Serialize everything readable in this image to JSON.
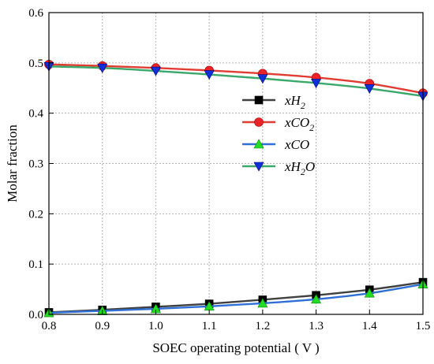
{
  "chart_data": {
    "type": "line",
    "title": "",
    "xlabel": "SOEC operating potential ( V )",
    "ylabel": "Molar fraction",
    "xlim": [
      0.8,
      1.5
    ],
    "ylim": [
      0.0,
      0.6
    ],
    "x": [
      0.8,
      0.9,
      1.0,
      1.1,
      1.2,
      1.3,
      1.4,
      1.5
    ],
    "x_ticks": [
      "0.8",
      "0.9",
      "1.0",
      "1.1",
      "1.2",
      "1.3",
      "1.4",
      "1.5"
    ],
    "y_ticks": [
      "0.0",
      "0.1",
      "0.2",
      "0.3",
      "0.4",
      "0.5",
      "0.6"
    ],
    "grid": true,
    "legend_position": "center-right",
    "series": [
      {
        "name": "xH2",
        "legend": {
          "base": "xH",
          "sub": "2",
          "tail": ""
        },
        "color": "#404040",
        "marker": "square",
        "marker_color": "#000000",
        "values": [
          0.004,
          0.009,
          0.015,
          0.021,
          0.029,
          0.038,
          0.049,
          0.064
        ]
      },
      {
        "name": "xCO2",
        "legend": {
          "base": "xCO",
          "sub": "2",
          "tail": ""
        },
        "color": "#e03c31",
        "marker": "circle",
        "marker_color": "#e8232a",
        "values": [
          0.497,
          0.494,
          0.49,
          0.485,
          0.479,
          0.471,
          0.459,
          0.44
        ]
      },
      {
        "name": "xCO",
        "legend": {
          "base": "xCO",
          "sub": "",
          "tail": ""
        },
        "color": "#2f6fd6",
        "marker": "triangle-up",
        "marker_color": "#22dd22",
        "values": [
          0.003,
          0.007,
          0.011,
          0.016,
          0.022,
          0.03,
          0.042,
          0.06
        ]
      },
      {
        "name": "xH2O",
        "legend": {
          "base": "xH",
          "sub": "2",
          "tail": "O"
        },
        "color": "#3aa86a",
        "marker": "triangle-down",
        "marker_color": "#1030d8",
        "values": [
          0.493,
          0.49,
          0.484,
          0.477,
          0.469,
          0.46,
          0.449,
          0.434
        ]
      }
    ]
  }
}
